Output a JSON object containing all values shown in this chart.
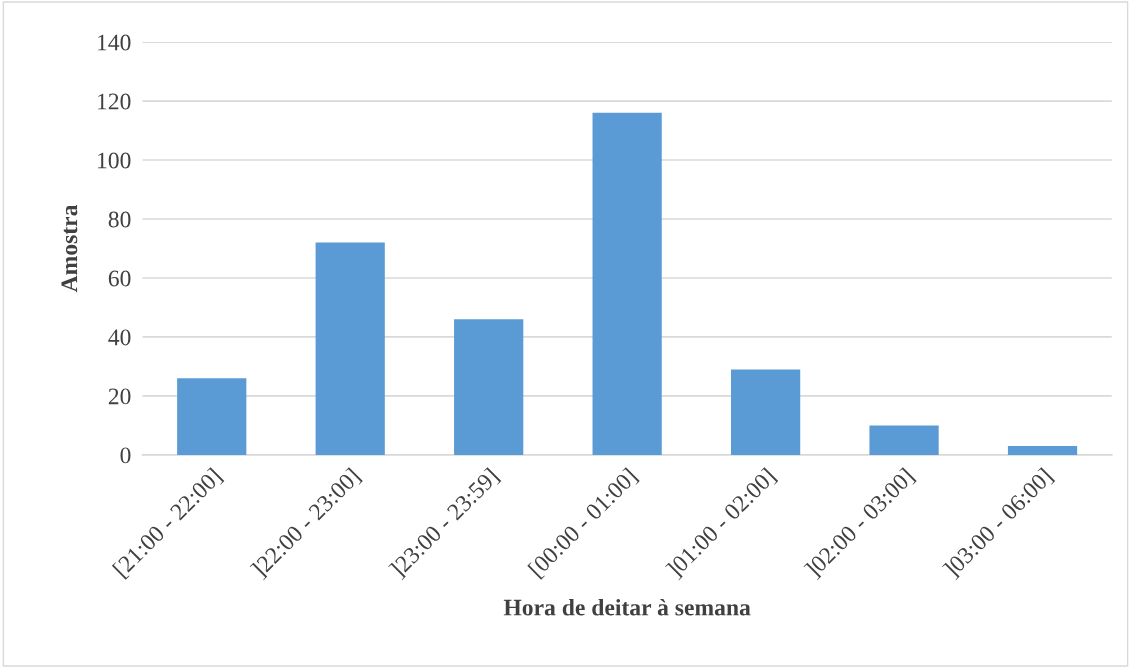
{
  "chart_data": {
    "type": "bar",
    "xlabel": "Hora de deitar à semana",
    "ylabel": "Amostra",
    "categories": [
      "[21:00 - 22:00]",
      "]22:00 - 23:00]",
      "]23:00 - 23:59]",
      "[00:00 - 01:00]",
      "]01:00 - 02:00]",
      "]02:00 - 03:00]",
      "]03:00 - 06:00]"
    ],
    "values": [
      26,
      72,
      46,
      116,
      29,
      10,
      3
    ],
    "color": "#5b9bd5",
    "ylim": [
      0,
      140
    ],
    "yticks": [
      0,
      20,
      40,
      60,
      80,
      100,
      120,
      140
    ],
    "grid": "y"
  }
}
